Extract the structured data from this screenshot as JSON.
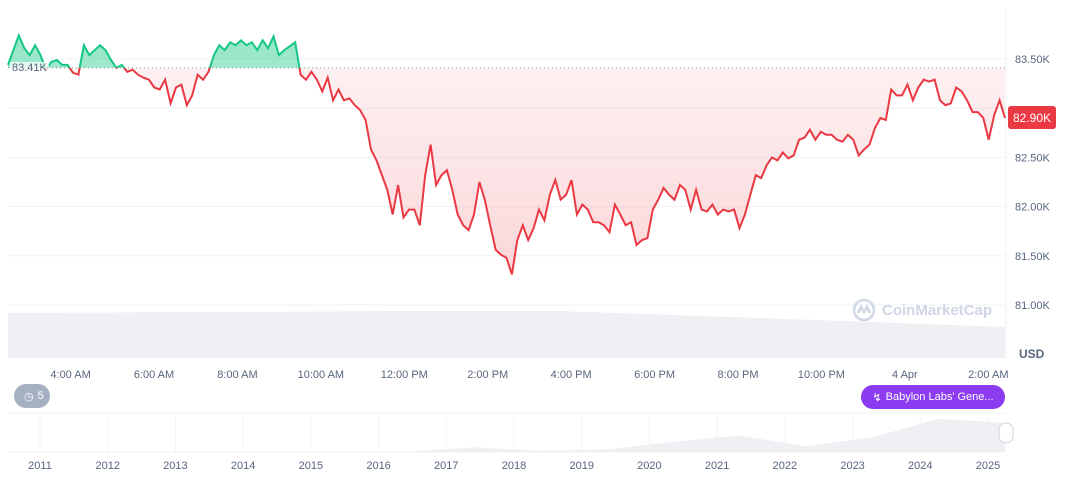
{
  "chart_data": {
    "type": "area",
    "currency_label": "USD",
    "baseline_value": 83410,
    "baseline_label": "83.41K",
    "current_price_label": "82.90K",
    "ylim": [
      80700,
      83800
    ],
    "y_ticks": [
      {
        "value": 83500,
        "label": "83.50K"
      },
      {
        "value": 83000,
        "label": ""
      },
      {
        "value": 82500,
        "label": "82.50K"
      },
      {
        "value": 82000,
        "label": "82.00K"
      },
      {
        "value": 81500,
        "label": "81.50K"
      },
      {
        "value": 81000,
        "label": "81.00K"
      }
    ],
    "x_ticks": [
      "4:00 AM",
      "6:00 AM",
      "8:00 AM",
      "10:00 AM",
      "12:00 PM",
      "2:00 PM",
      "4:00 PM",
      "6:00 PM",
      "8:00 PM",
      "10:00 PM",
      "4 Apr",
      "2:00 AM"
    ],
    "x_range_hours": [
      2.5,
      26.4
    ],
    "x_tick_hours": [
      4,
      6,
      8,
      10,
      12,
      14,
      16,
      18,
      20,
      22,
      24,
      26
    ],
    "grid": true,
    "colors": {
      "up": "#16c784",
      "down": "#ea3943",
      "grid": "#eff2f5",
      "volume": "#eef0f4"
    },
    "prices": [
      83440,
      83590,
      83740,
      83610,
      83540,
      83640,
      83540,
      83390,
      83470,
      83490,
      83440,
      83440,
      83360,
      83340,
      83640,
      83540,
      83590,
      83640,
      83590,
      83490,
      83410,
      83440,
      83370,
      83390,
      83340,
      83310,
      83290,
      83210,
      83190,
      83290,
      83050,
      83210,
      83240,
      83030,
      83130,
      83340,
      83290,
      83370,
      83540,
      83640,
      83590,
      83670,
      83640,
      83690,
      83640,
      83670,
      83590,
      83690,
      83610,
      83730,
      83540,
      83590,
      83630,
      83670,
      83340,
      83290,
      83370,
      83290,
      83170,
      83310,
      83080,
      83190,
      83080,
      83100,
      83030,
      82980,
      82880,
      82580,
      82470,
      82320,
      82170,
      81920,
      82220,
      81890,
      81970,
      81970,
      81810,
      82320,
      82630,
      82220,
      82320,
      82370,
      82170,
      81920,
      81810,
      81760,
      81920,
      82250,
      82070,
      81810,
      81560,
      81510,
      81480,
      81310,
      81660,
      81810,
      81660,
      81780,
      81970,
      81860,
      82120,
      82270,
      82070,
      82120,
      82270,
      81920,
      82020,
      81970,
      81840,
      81840,
      81810,
      81740,
      82020,
      81920,
      81810,
      81840,
      81610,
      81660,
      81680,
      81970,
      82070,
      82190,
      82120,
      82070,
      82220,
      82170,
      81970,
      82170,
      81970,
      81950,
      82020,
      81920,
      81970,
      81950,
      81970,
      81780,
      81920,
      82120,
      82320,
      82290,
      82420,
      82500,
      82470,
      82550,
      82490,
      82520,
      82680,
      82700,
      82780,
      82680,
      82760,
      82730,
      82730,
      82680,
      82660,
      82730,
      82680,
      82520,
      82580,
      82630,
      82800,
      82900,
      82880,
      83190,
      83130,
      83130,
      83240,
      83080,
      83210,
      83290,
      83270,
      83290,
      83080,
      83030,
      83050,
      83210,
      83170,
      83080,
      82960,
      82960,
      82900,
      82680,
      82930,
      83080,
      82900
    ],
    "navigator": {
      "years": [
        "2011",
        "2012",
        "2013",
        "2014",
        "2015",
        "2016",
        "2017",
        "2018",
        "2019",
        "2020",
        "2021",
        "2022",
        "2023",
        "2024",
        "2025"
      ],
      "history_prices": [
        0,
        5,
        13,
        700,
        300,
        430,
        1000,
        13000,
        3700,
        7200,
        29000,
        47000,
        16500,
        42000,
        95000,
        83000
      ]
    }
  },
  "controls": {
    "history_count": "5",
    "event_label": "Babylon Labs' Gene..."
  },
  "watermark": "CoinMarketCap"
}
